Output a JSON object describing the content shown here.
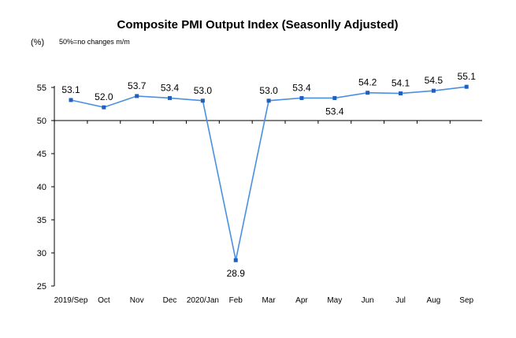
{
  "chart_data": {
    "type": "line",
    "title": "Composite PMI Output Index (Seasonlly Adjusted)",
    "unit_label": "(%)",
    "note": "50%=no changes  m/m",
    "xlabel": "",
    "ylabel": "",
    "ylim": [
      25,
      55
    ],
    "yticks": [
      25,
      30,
      35,
      40,
      45,
      50,
      55
    ],
    "reference_line": 50,
    "grid": false,
    "legend": "none",
    "line_color": "#4a90e2",
    "marker_color": "#1f5fbf",
    "categories": [
      "2019/Sep",
      "Oct",
      "Nov",
      "Dec",
      "2020/Jan",
      "Feb",
      "Mar",
      "Apr",
      "May",
      "Jun",
      "Jul",
      "Aug",
      "Sep"
    ],
    "series": [
      {
        "values": [
          53.1,
          52.0,
          53.7,
          53.4,
          53.0,
          28.9,
          53.0,
          53.4,
          53.4,
          54.2,
          54.1,
          54.5,
          55.1
        ]
      }
    ],
    "data_labels": [
      "53.1",
      "52.0",
      "53.7",
      "53.4",
      "53.0",
      "28.9",
      "53.0",
      "53.4",
      "53.4",
      "54.2",
      "54.1",
      "54.5",
      "55.1"
    ],
    "label_below": [
      5,
      8
    ]
  }
}
